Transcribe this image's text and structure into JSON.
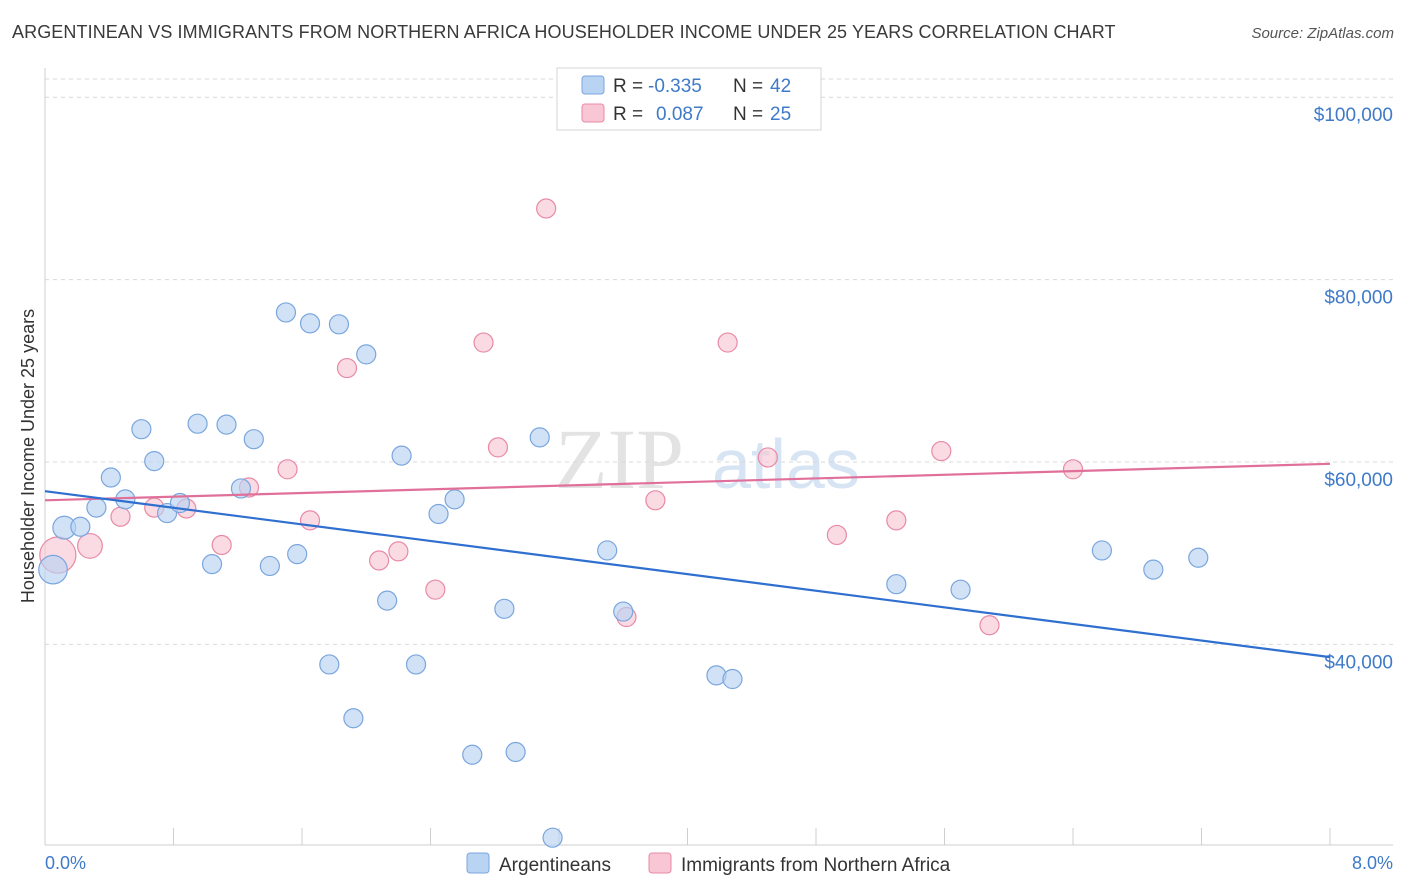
{
  "title": "ARGENTINEAN VS IMMIGRANTS FROM NORTHERN AFRICA HOUSEHOLDER INCOME UNDER 25 YEARS CORRELATION CHART",
  "source": "Source: ZipAtlas.com",
  "watermark": {
    "zip": "ZIP",
    "atlas": "atlas"
  },
  "colors": {
    "blue_fill": "#b9d3f2",
    "blue_stroke": "#7aa6de",
    "blue_line": "#2f6fcf",
    "pink_fill": "#f8c6d4",
    "pink_stroke": "#e88aa6",
    "pink_line": "#e0709a",
    "axis_label": "#3f7ac9",
    "grid": "#d9d9d9"
  },
  "legend_box": {
    "rows": [
      {
        "r_label": "R =",
        "r_value": "-0.335",
        "n_label": "N =",
        "n_value": "42",
        "series": "blue"
      },
      {
        "r_label": "R =",
        "r_value": "0.087",
        "n_label": "N =",
        "n_value": "25",
        "series": "pink"
      }
    ]
  },
  "bottom_legend": [
    {
      "label": "Argentineans",
      "series": "blue"
    },
    {
      "label": "Immigrants from Northern Africa",
      "series": "pink"
    }
  ],
  "chart_data": {
    "type": "scatter",
    "title": "ARGENTINEAN VS IMMIGRANTS FROM NORTHERN AFRICA HOUSEHOLDER INCOME UNDER 25 YEARS CORRELATION CHART",
    "xlabel": "",
    "ylabel": "Householder Income Under 25 years",
    "xlim": [
      0,
      8
    ],
    "ylim": [
      18000,
      102000
    ],
    "x_tick_labels": [
      "0.0%",
      "8.0%"
    ],
    "y_ticks": [
      40000,
      60000,
      80000,
      100000
    ],
    "y_tick_labels": [
      "$40,000",
      "$60,000",
      "$80,000",
      "$100,000"
    ],
    "series": [
      {
        "name": "Argentineans",
        "color": "blue",
        "trend": {
          "x": [
            0,
            8
          ],
          "y": [
            56800,
            38600
          ]
        },
        "points": [
          [
            0.05,
            48200,
            1.5
          ],
          [
            0.12,
            52800,
            1.2
          ],
          [
            0.22,
            52900,
            1.0
          ],
          [
            0.32,
            55000,
            1.0
          ],
          [
            0.41,
            58300,
            1.0
          ],
          [
            0.5,
            55900,
            1.0
          ],
          [
            0.6,
            63600,
            1.0
          ],
          [
            0.68,
            60100,
            1.0
          ],
          [
            0.76,
            54400,
            1.0
          ],
          [
            0.84,
            55500,
            1.0
          ],
          [
            0.95,
            64200,
            1.0
          ],
          [
            1.04,
            48800,
            1.0
          ],
          [
            1.13,
            64100,
            1.0
          ],
          [
            1.22,
            57100,
            1.0
          ],
          [
            1.3,
            62500,
            1.0
          ],
          [
            1.4,
            48600,
            1.0
          ],
          [
            1.5,
            76400,
            1.0
          ],
          [
            1.57,
            49900,
            1.0
          ],
          [
            1.65,
            75200,
            1.0
          ],
          [
            1.77,
            37800,
            1.0
          ],
          [
            1.83,
            75100,
            1.0
          ],
          [
            1.92,
            31900,
            1.0
          ],
          [
            2.0,
            71800,
            1.0
          ],
          [
            2.13,
            44800,
            1.0
          ],
          [
            2.22,
            60700,
            1.0
          ],
          [
            2.31,
            37800,
            1.0
          ],
          [
            2.45,
            54300,
            1.0
          ],
          [
            2.55,
            55900,
            1.0
          ],
          [
            2.66,
            27900,
            1.0
          ],
          [
            2.86,
            43900,
            1.0
          ],
          [
            2.93,
            28200,
            1.0
          ],
          [
            3.08,
            62700,
            1.0
          ],
          [
            3.16,
            18800,
            1.0
          ],
          [
            3.5,
            50300,
            1.0
          ],
          [
            3.6,
            43600,
            1.0
          ],
          [
            4.18,
            36600,
            1.0
          ],
          [
            4.28,
            36200,
            1.0
          ],
          [
            5.3,
            46600,
            1.0
          ],
          [
            5.7,
            46000,
            1.0
          ],
          [
            6.58,
            50300,
            1.0
          ],
          [
            6.9,
            48200,
            1.0
          ],
          [
            7.18,
            49500,
            1.0
          ]
        ]
      },
      {
        "name": "Immigrants from Northern Africa",
        "color": "pink",
        "trend": {
          "x": [
            0,
            8
          ],
          "y": [
            55800,
            59800
          ]
        },
        "points": [
          [
            0.08,
            49800,
            1.9
          ],
          [
            0.28,
            50800,
            1.3
          ],
          [
            0.47,
            54000,
            1.0
          ],
          [
            0.68,
            55000,
            1.0
          ],
          [
            0.88,
            54900,
            1.0
          ],
          [
            1.1,
            50900,
            1.0
          ],
          [
            1.27,
            57200,
            1.0
          ],
          [
            1.51,
            59200,
            1.0
          ],
          [
            1.65,
            53600,
            1.0
          ],
          [
            1.88,
            70300,
            1.0
          ],
          [
            2.08,
            49200,
            1.0
          ],
          [
            2.2,
            50200,
            1.0
          ],
          [
            2.43,
            46000,
            1.0
          ],
          [
            2.73,
            73100,
            1.0
          ],
          [
            2.82,
            61600,
            1.0
          ],
          [
            3.12,
            87800,
            1.0
          ],
          [
            3.62,
            43000,
            1.0
          ],
          [
            3.8,
            55800,
            1.0
          ],
          [
            4.25,
            73100,
            1.0
          ],
          [
            4.5,
            60500,
            1.0
          ],
          [
            4.93,
            52000,
            1.0
          ],
          [
            5.3,
            53600,
            1.0
          ],
          [
            5.58,
            61200,
            1.0
          ],
          [
            5.88,
            42100,
            1.0
          ],
          [
            6.4,
            59200,
            1.0
          ]
        ]
      }
    ]
  }
}
